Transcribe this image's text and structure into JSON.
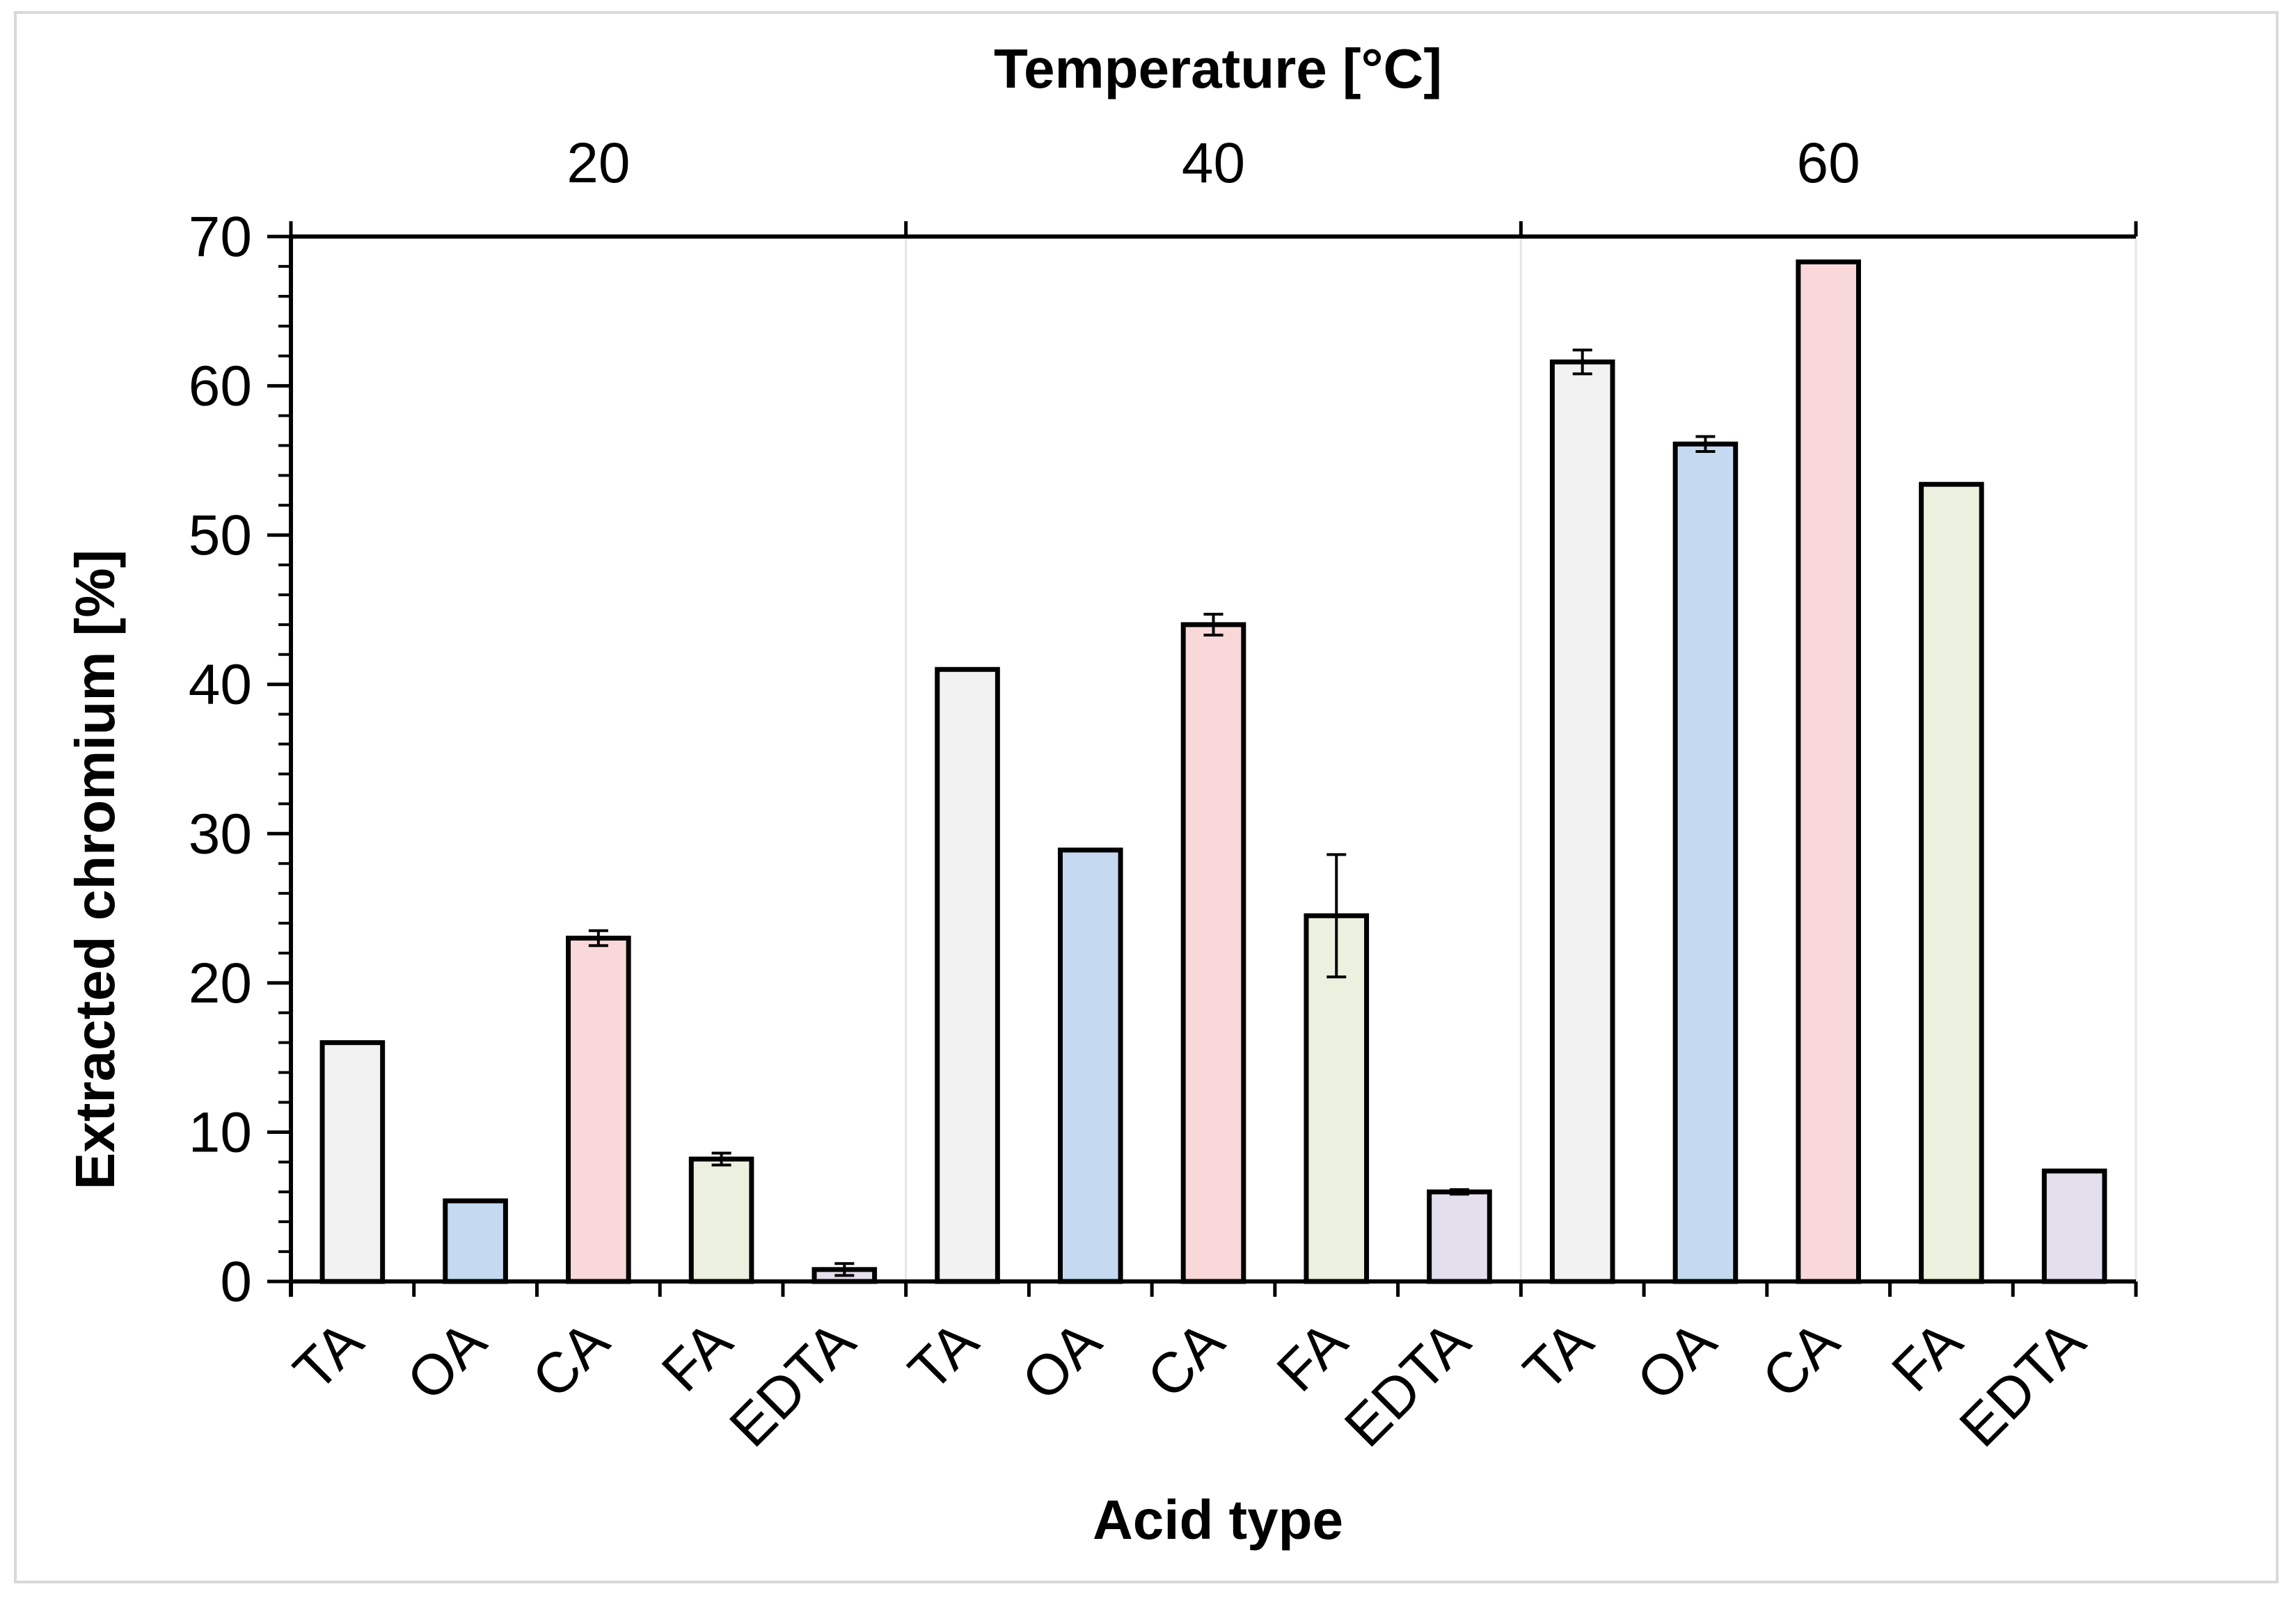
{
  "chart_data": {
    "type": "bar",
    "top_axis_title": "Temperature [°C]",
    "xlabel": "Acid type",
    "ylabel": "Extracted chromium [%]",
    "ylim": [
      0,
      70
    ],
    "y_ticks": [
      0,
      10,
      20,
      30,
      40,
      50,
      60,
      70
    ],
    "y_tick_labels": [
      "0",
      "10",
      "20",
      "30",
      "40",
      "50",
      "60",
      "70"
    ],
    "legend": "none",
    "colors": {
      "TA": "#f2f2f2",
      "OA": "#c5d9f1",
      "CA": "#f8d8d8",
      "FA": "#ebf1de",
      "EDTA": "#e4dfec"
    },
    "groups": [
      {
        "label": "20",
        "categories": [
          "TA",
          "OA",
          "CA",
          "FA",
          "EDTA"
        ],
        "values": [
          16.0,
          5.4,
          23.0,
          8.2,
          0.8
        ],
        "errors": [
          0,
          0,
          0.5,
          0.4,
          0.4
        ]
      },
      {
        "label": "40",
        "categories": [
          "TA",
          "OA",
          "CA",
          "FA",
          "EDTA"
        ],
        "values": [
          41.0,
          28.9,
          44.0,
          24.5,
          6.0
        ],
        "errors": [
          0,
          0,
          0.7,
          4.1,
          0.15
        ]
      },
      {
        "label": "60",
        "categories": [
          "TA",
          "OA",
          "CA",
          "FA",
          "EDTA"
        ],
        "values": [
          61.6,
          56.1,
          68.3,
          53.4,
          7.4
        ],
        "errors": [
          0.8,
          0.5,
          0,
          0,
          0
        ]
      }
    ]
  }
}
